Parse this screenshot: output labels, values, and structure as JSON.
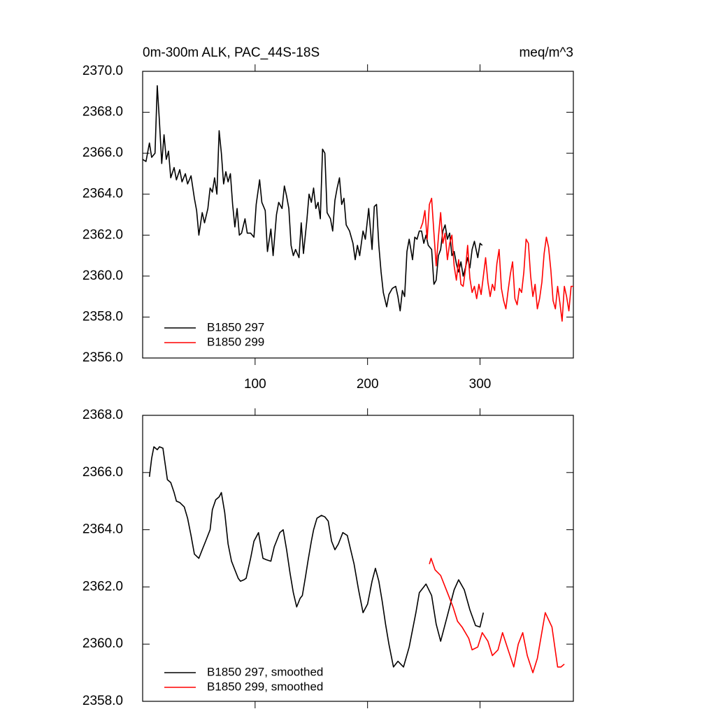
{
  "chart_data": [
    {
      "type": "line",
      "title": "0m-300m ALK, PAC_44S-18S",
      "units": "meq/m^3",
      "xlim": [
        0,
        383
      ],
      "xticks": [
        100,
        200,
        300
      ],
      "ylim": [
        2356,
        2370
      ],
      "yticks": [
        {
          "value": 2356,
          "label": "2356.0"
        },
        {
          "value": 2358,
          "label": "2358.0"
        },
        {
          "value": 2360,
          "label": "2360.0"
        },
        {
          "value": 2362,
          "label": "2362.0"
        },
        {
          "value": 2364,
          "label": "2364.0"
        },
        {
          "value": 2366,
          "label": "2366.0"
        },
        {
          "value": 2368,
          "label": "2368.0"
        },
        {
          "value": 2370,
          "label": "2370.0"
        }
      ],
      "legend": "lower left",
      "series": [
        {
          "name": "B1850 297",
          "color": "#000000",
          "x": [
            0,
            3,
            6,
            8,
            11,
            13,
            15,
            17,
            19,
            21,
            23,
            25,
            28,
            30,
            33,
            35,
            38,
            40,
            43,
            46,
            48,
            50,
            53,
            55,
            58,
            60,
            62,
            64,
            66,
            68,
            70,
            72,
            74,
            76,
            78,
            80,
            82,
            84,
            86,
            88,
            91,
            93,
            96,
            99,
            101,
            104,
            106,
            109,
            111,
            114,
            116,
            119,
            121,
            124,
            126,
            128,
            130,
            132,
            134,
            136,
            139,
            141,
            143,
            146,
            148,
            150,
            152,
            154,
            156,
            158,
            160,
            162,
            164,
            167,
            169,
            171,
            173,
            175,
            177,
            179,
            181,
            184,
            187,
            189,
            191,
            193,
            196,
            198,
            201,
            204,
            206,
            208,
            210,
            212,
            214,
            217,
            219,
            222,
            225,
            227,
            229,
            231,
            233,
            235,
            237,
            240,
            242,
            244,
            246,
            248,
            250,
            252,
            254,
            257,
            259,
            261,
            263,
            265,
            267,
            269,
            271,
            273,
            275,
            277,
            279,
            281,
            283,
            285,
            287,
            289,
            291,
            293,
            295,
            298,
            300,
            302
          ],
          "values": [
            2365.7,
            2365.6,
            2366.5,
            2365.8,
            2366.0,
            2369.3,
            2367.5,
            2365.5,
            2366.9,
            2365.7,
            2366.1,
            2364.8,
            2365.3,
            2364.7,
            2365.2,
            2364.6,
            2365.0,
            2364.5,
            2364.9,
            2363.8,
            2363.2,
            2362.0,
            2363.1,
            2362.6,
            2363.3,
            2364.3,
            2364.1,
            2364.8,
            2364.0,
            2367.1,
            2366.0,
            2364.5,
            2365.1,
            2364.6,
            2365.0,
            2363.5,
            2362.4,
            2363.3,
            2362.0,
            2362.1,
            2362.8,
            2362.1,
            2362.1,
            2361.9,
            2363.5,
            2364.7,
            2363.6,
            2363.2,
            2361.2,
            2362.3,
            2361.0,
            2363.0,
            2363.6,
            2363.3,
            2364.4,
            2363.9,
            2363.3,
            2361.5,
            2361.0,
            2361.3,
            2360.9,
            2362.6,
            2361.1,
            2362.7,
            2364.0,
            2363.6,
            2364.3,
            2363.3,
            2363.6,
            2362.8,
            2366.2,
            2366.0,
            2363.1,
            2362.8,
            2362.2,
            2363.7,
            2364.3,
            2364.8,
            2363.5,
            2363.8,
            2362.5,
            2362.2,
            2361.6,
            2360.8,
            2361.5,
            2361.0,
            2362.2,
            2361.8,
            2363.3,
            2361.3,
            2363.4,
            2363.5,
            2361.5,
            2360.2,
            2359.2,
            2358.5,
            2359.1,
            2359.4,
            2359.5,
            2359.0,
            2358.3,
            2359.3,
            2359.0,
            2361.2,
            2361.8,
            2360.8,
            2361.9,
            2361.8,
            2362.2,
            2362.2,
            2361.6,
            2362.0,
            2361.5,
            2361.3,
            2359.6,
            2359.8,
            2361.0,
            2361.3,
            2362.2,
            2362.5,
            2361.8,
            2362.1,
            2361.0,
            2361.2,
            2360.6,
            2360.2,
            2360.7,
            2360.0,
            2360.4,
            2360.9,
            2360.4,
            2361.3,
            2361.7,
            2360.9,
            2361.6,
            2361.5
          ]
        },
        {
          "name": "B1850 299",
          "color": "#ff0000",
          "x": [
            247,
            249,
            251,
            253,
            255,
            257,
            259,
            261,
            263,
            265,
            267,
            269,
            271,
            273,
            275,
            277,
            279,
            281,
            283,
            285,
            287,
            289,
            291,
            293,
            295,
            297,
            299,
            301,
            303,
            305,
            307,
            309,
            311,
            313,
            315,
            317,
            319,
            321,
            323,
            325,
            327,
            329,
            331,
            333,
            335,
            337,
            339,
            341,
            343,
            345,
            347,
            349,
            351,
            353,
            355,
            357,
            359,
            361,
            363,
            365,
            367,
            369,
            371,
            373,
            375,
            377,
            379,
            381,
            383
          ],
          "values": [
            2362.3,
            2362.6,
            2363.2,
            2361.8,
            2363.5,
            2363.8,
            2362.1,
            2360.5,
            2361.9,
            2363.1,
            2361.6,
            2362.1,
            2360.8,
            2361.6,
            2362.0,
            2360.5,
            2359.8,
            2360.8,
            2359.6,
            2359.5,
            2360.3,
            2361.5,
            2359.9,
            2359.2,
            2359.5,
            2358.9,
            2359.6,
            2359.1,
            2360.0,
            2360.9,
            2359.7,
            2359.0,
            2359.6,
            2359.3,
            2360.6,
            2361.3,
            2359.4,
            2358.8,
            2358.4,
            2359.3,
            2360.1,
            2360.7,
            2358.9,
            2358.6,
            2359.4,
            2359.2,
            2360.2,
            2361.8,
            2361.6,
            2360.0,
            2359.0,
            2359.6,
            2358.4,
            2358.9,
            2359.7,
            2361.1,
            2361.9,
            2361.4,
            2360.3,
            2358.8,
            2358.4,
            2359.5,
            2358.7,
            2357.8,
            2359.5,
            2359.0,
            2358.3,
            2359.5,
            2359.5
          ]
        }
      ]
    },
    {
      "type": "line",
      "xlim": [
        0,
        383
      ],
      "xticks": [
        100,
        200,
        300
      ],
      "ylim": [
        2358,
        2368
      ],
      "yticks": [
        {
          "value": 2358,
          "label": "2358.0"
        },
        {
          "value": 2360,
          "label": "2360.0"
        },
        {
          "value": 2362,
          "label": "2362.0"
        },
        {
          "value": 2364,
          "label": "2364.0"
        },
        {
          "value": 2366,
          "label": "2366.0"
        },
        {
          "value": 2368,
          "label": "2368.0"
        }
      ],
      "legend": "lower left",
      "series": [
        {
          "name": "B1850 297, smoothed",
          "color": "#000000",
          "x": [
            6,
            8,
            10,
            13,
            15,
            18,
            20,
            22,
            25,
            28,
            30,
            33,
            37,
            40,
            43,
            46,
            50,
            53,
            56,
            60,
            62,
            65,
            68,
            70,
            73,
            76,
            79,
            82,
            85,
            87,
            90,
            92,
            96,
            99,
            103,
            107,
            110,
            114,
            117,
            119,
            122,
            125,
            128,
            131,
            134,
            137,
            140,
            142,
            145,
            147,
            150,
            152,
            155,
            159,
            162,
            165,
            168,
            171,
            174,
            178,
            182,
            185,
            188,
            192,
            196,
            200,
            204,
            207,
            210,
            213,
            216,
            219,
            223,
            227,
            232,
            237,
            243,
            246,
            252,
            257,
            261,
            265,
            271,
            277,
            281,
            286,
            291,
            296,
            300,
            303
          ],
          "values": [
            2365.85,
            2366.5,
            2366.9,
            2366.8,
            2366.9,
            2366.85,
            2366.3,
            2365.75,
            2365.65,
            2365.3,
            2365.0,
            2364.95,
            2364.8,
            2364.4,
            2363.8,
            2363.15,
            2363.0,
            2363.3,
            2363.6,
            2364.0,
            2364.7,
            2365.05,
            2365.15,
            2365.3,
            2364.6,
            2363.5,
            2362.9,
            2362.6,
            2362.3,
            2362.2,
            2362.25,
            2362.3,
            2363.0,
            2363.6,
            2363.9,
            2363.0,
            2362.95,
            2362.9,
            2363.4,
            2363.6,
            2363.9,
            2364.0,
            2363.3,
            2362.5,
            2361.8,
            2361.3,
            2361.6,
            2361.7,
            2362.4,
            2362.9,
            2363.6,
            2364.0,
            2364.4,
            2364.5,
            2364.45,
            2364.3,
            2363.6,
            2363.3,
            2363.5,
            2363.9,
            2363.8,
            2363.3,
            2362.8,
            2361.9,
            2361.1,
            2361.4,
            2362.2,
            2362.65,
            2362.2,
            2361.5,
            2360.7,
            2360.0,
            2359.2,
            2359.4,
            2359.2,
            2359.9,
            2361.1,
            2361.8,
            2362.1,
            2361.7,
            2360.7,
            2360.1,
            2361.0,
            2361.9,
            2362.25,
            2361.9,
            2361.2,
            2360.65,
            2360.6,
            2361.1
          ]
        },
        {
          "name": "B1850 299, smoothed",
          "color": "#ff0000",
          "x": [
            255,
            256.5,
            260,
            265,
            271,
            276,
            280,
            284,
            290,
            293,
            298,
            302,
            307,
            311,
            316,
            320,
            325,
            330,
            334,
            338,
            342,
            347,
            351,
            358,
            364,
            369,
            372,
            375
          ],
          "values": [
            2362.8,
            2363.0,
            2362.6,
            2362.4,
            2361.8,
            2361.3,
            2360.8,
            2360.6,
            2360.2,
            2359.8,
            2359.9,
            2360.4,
            2360.1,
            2359.6,
            2359.8,
            2360.4,
            2359.8,
            2359.2,
            2360.0,
            2360.4,
            2359.6,
            2359.0,
            2359.5,
            2361.1,
            2360.6,
            2359.2,
            2359.2,
            2359.3
          ]
        }
      ]
    }
  ]
}
